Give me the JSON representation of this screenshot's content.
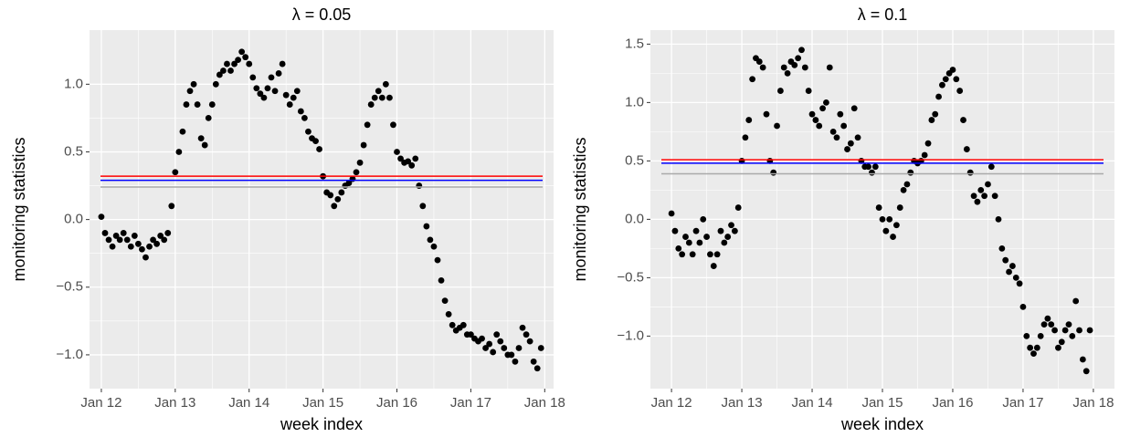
{
  "chart_data": [
    {
      "type": "scatter",
      "title": "λ = 0.05",
      "x_label": "week index",
      "y_label": "monitoring statistics",
      "color": "#000000",
      "x": [
        2012.0,
        2012.05,
        2012.1,
        2012.15,
        2012.2,
        2012.25,
        2012.3,
        2012.35,
        2012.4,
        2012.45,
        2012.5,
        2012.55,
        2012.6,
        2012.65,
        2012.7,
        2012.75,
        2012.8,
        2012.85,
        2012.9,
        2012.95,
        2013.0,
        2013.05,
        2013.1,
        2013.15,
        2013.2,
        2013.25,
        2013.3,
        2013.35,
        2013.4,
        2013.45,
        2013.5,
        2013.55,
        2013.6,
        2013.65,
        2013.7,
        2013.75,
        2013.8,
        2013.85,
        2013.9,
        2013.95,
        2014.0,
        2014.05,
        2014.1,
        2014.15,
        2014.2,
        2014.25,
        2014.3,
        2014.35,
        2014.4,
        2014.45,
        2014.5,
        2014.55,
        2014.6,
        2014.65,
        2014.7,
        2014.75,
        2014.8,
        2014.85,
        2014.9,
        2014.95,
        2015.0,
        2015.05,
        2015.1,
        2015.15,
        2015.2,
        2015.25,
        2015.3,
        2015.35,
        2015.4,
        2015.45,
        2015.5,
        2015.55,
        2015.6,
        2015.65,
        2015.7,
        2015.75,
        2015.8,
        2015.85,
        2015.9,
        2015.95,
        2016.0,
        2016.05,
        2016.1,
        2016.15,
        2016.2,
        2016.25,
        2016.3,
        2016.35,
        2016.4,
        2016.45,
        2016.5,
        2016.55,
        2016.6,
        2016.65,
        2016.7,
        2016.75,
        2016.8,
        2016.85,
        2016.9,
        2016.95,
        2017.0,
        2017.05,
        2017.1,
        2017.15,
        2017.2,
        2017.25,
        2017.3,
        2017.35,
        2017.4,
        2017.45,
        2017.5,
        2017.55,
        2017.6,
        2017.65,
        2017.7,
        2017.75,
        2017.8,
        2017.85,
        2017.9,
        2017.95
      ],
      "values": [
        0.02,
        -0.1,
        -0.15,
        -0.2,
        -0.12,
        -0.15,
        -0.1,
        -0.15,
        -0.2,
        -0.12,
        -0.18,
        -0.22,
        -0.28,
        -0.2,
        -0.15,
        -0.18,
        -0.12,
        -0.15,
        -0.1,
        0.1,
        0.35,
        0.5,
        0.65,
        0.85,
        0.95,
        1.0,
        0.85,
        0.6,
        0.55,
        0.75,
        0.85,
        1.0,
        1.07,
        1.1,
        1.15,
        1.1,
        1.15,
        1.18,
        1.24,
        1.2,
        1.15,
        1.05,
        0.97,
        0.93,
        0.9,
        0.97,
        1.05,
        0.95,
        1.08,
        1.15,
        0.92,
        0.85,
        0.9,
        0.95,
        0.8,
        0.75,
        0.65,
        0.6,
        0.58,
        0.52,
        0.32,
        0.2,
        0.18,
        0.1,
        0.15,
        0.2,
        0.25,
        0.27,
        0.3,
        0.35,
        0.42,
        0.55,
        0.7,
        0.85,
        0.9,
        0.95,
        0.9,
        1.0,
        0.9,
        0.7,
        0.5,
        0.45,
        0.42,
        0.43,
        0.4,
        0.45,
        0.25,
        0.1,
        -0.05,
        -0.15,
        -0.2,
        -0.3,
        -0.45,
        -0.6,
        -0.7,
        -0.78,
        -0.82,
        -0.8,
        -0.78,
        -0.85,
        -0.85,
        -0.88,
        -0.9,
        -0.88,
        -0.95,
        -0.92,
        -0.98,
        -0.85,
        -0.9,
        -0.95,
        -1.0,
        -1.0,
        -1.05,
        -0.95,
        -0.8,
        -0.85,
        -0.9,
        -1.05,
        -1.1,
        -0.95
      ],
      "hlines": [
        {
          "value": 0.32,
          "color": "#ff0000"
        },
        {
          "value": 0.29,
          "color": "#0000ff"
        },
        {
          "value": 0.24,
          "color": "#aaaaaa"
        }
      ],
      "xlim": [
        2011.84,
        2018.12
      ],
      "ylim": [
        -1.25,
        1.4
      ],
      "xticks": [
        {
          "value": 2012,
          "label": "Jan 12"
        },
        {
          "value": 2013,
          "label": "Jan 13"
        },
        {
          "value": 2014,
          "label": "Jan 14"
        },
        {
          "value": 2015,
          "label": "Jan 15"
        },
        {
          "value": 2016,
          "label": "Jan 16"
        },
        {
          "value": 2017,
          "label": "Jan 17"
        },
        {
          "value": 2018,
          "label": "Jan 18"
        }
      ],
      "yticks": [
        {
          "value": -1.0,
          "label": "−1.0"
        },
        {
          "value": -0.5,
          "label": "−0.5"
        },
        {
          "value": 0,
          "label": "0.0"
        },
        {
          "value": 0.5,
          "label": "0.5"
        },
        {
          "value": 1.0,
          "label": "1.0"
        }
      ],
      "grid": true
    },
    {
      "type": "scatter",
      "title": "λ = 0.1",
      "x_label": "week index",
      "y_label": "monitoring statistics",
      "color": "#000000",
      "x": [
        2012.0,
        2012.05,
        2012.1,
        2012.15,
        2012.2,
        2012.25,
        2012.3,
        2012.35,
        2012.4,
        2012.45,
        2012.5,
        2012.55,
        2012.6,
        2012.65,
        2012.7,
        2012.75,
        2012.8,
        2012.85,
        2012.9,
        2012.95,
        2013.0,
        2013.05,
        2013.1,
        2013.15,
        2013.2,
        2013.25,
        2013.3,
        2013.35,
        2013.4,
        2013.45,
        2013.5,
        2013.55,
        2013.6,
        2013.65,
        2013.7,
        2013.75,
        2013.8,
        2013.85,
        2013.9,
        2013.95,
        2014.0,
        2014.05,
        2014.1,
        2014.15,
        2014.2,
        2014.25,
        2014.3,
        2014.35,
        2014.4,
        2014.45,
        2014.5,
        2014.55,
        2014.6,
        2014.65,
        2014.7,
        2014.75,
        2014.8,
        2014.85,
        2014.9,
        2014.95,
        2015.0,
        2015.05,
        2015.1,
        2015.15,
        2015.2,
        2015.25,
        2015.3,
        2015.35,
        2015.4,
        2015.45,
        2015.5,
        2015.55,
        2015.6,
        2015.65,
        2015.7,
        2015.75,
        2015.8,
        2015.85,
        2015.9,
        2015.95,
        2016.0,
        2016.05,
        2016.1,
        2016.15,
        2016.2,
        2016.25,
        2016.3,
        2016.35,
        2016.4,
        2016.45,
        2016.5,
        2016.55,
        2016.6,
        2016.65,
        2016.7,
        2016.75,
        2016.8,
        2016.85,
        2016.9,
        2016.95,
        2017.0,
        2017.05,
        2017.1,
        2017.15,
        2017.2,
        2017.25,
        2017.3,
        2017.35,
        2017.4,
        2017.45,
        2017.5,
        2017.55,
        2017.6,
        2017.65,
        2017.7,
        2017.75,
        2017.8,
        2017.85,
        2017.9,
        2017.95
      ],
      "values": [
        0.05,
        -0.1,
        -0.25,
        -0.3,
        -0.15,
        -0.2,
        -0.3,
        -0.1,
        -0.2,
        0.0,
        -0.15,
        -0.3,
        -0.4,
        -0.3,
        -0.1,
        -0.2,
        -0.15,
        -0.05,
        -0.1,
        0.1,
        0.5,
        0.7,
        0.85,
        1.2,
        1.38,
        1.35,
        1.3,
        0.9,
        0.5,
        0.4,
        0.8,
        1.1,
        1.3,
        1.25,
        1.35,
        1.32,
        1.38,
        1.45,
        1.3,
        1.1,
        0.9,
        0.85,
        0.8,
        0.95,
        1.0,
        1.3,
        0.75,
        0.7,
        0.9,
        0.8,
        0.6,
        0.65,
        0.95,
        0.7,
        0.5,
        0.45,
        0.45,
        0.4,
        0.45,
        0.1,
        0.0,
        -0.1,
        0.0,
        -0.15,
        -0.05,
        0.1,
        0.25,
        0.3,
        0.4,
        0.5,
        0.48,
        0.5,
        0.55,
        0.65,
        0.85,
        0.9,
        1.05,
        1.15,
        1.2,
        1.25,
        1.28,
        1.2,
        1.1,
        0.85,
        0.6,
        0.4,
        0.2,
        0.15,
        0.25,
        0.2,
        0.3,
        0.45,
        0.2,
        0.0,
        -0.25,
        -0.35,
        -0.45,
        -0.4,
        -0.5,
        -0.55,
        -0.75,
        -1.0,
        -1.1,
        -1.15,
        -1.1,
        -1.0,
        -0.9,
        -0.85,
        -0.9,
        -0.95,
        -1.1,
        -1.05,
        -0.95,
        -0.9,
        -1.0,
        -0.7,
        -0.95,
        -1.2,
        -1.3,
        -0.95
      ],
      "hlines": [
        {
          "value": 0.51,
          "color": "#ff0000"
        },
        {
          "value": 0.48,
          "color": "#0000ff"
        },
        {
          "value": 0.39,
          "color": "#aaaaaa"
        }
      ],
      "xlim": [
        2011.7,
        2018.3
      ],
      "ylim": [
        -1.45,
        1.62
      ],
      "xticks": [
        {
          "value": 2012,
          "label": "Jan 12"
        },
        {
          "value": 2013,
          "label": "Jan 13"
        },
        {
          "value": 2014,
          "label": "Jan 14"
        },
        {
          "value": 2015,
          "label": "Jan 15"
        },
        {
          "value": 2016,
          "label": "Jan 16"
        },
        {
          "value": 2017,
          "label": "Jan 17"
        },
        {
          "value": 2018,
          "label": "Jan 18"
        }
      ],
      "yticks": [
        {
          "value": -1.0,
          "label": "−1.0"
        },
        {
          "value": -0.5,
          "label": "−0.5"
        },
        {
          "value": 0,
          "label": "0.0"
        },
        {
          "value": 0.5,
          "label": "0.5"
        },
        {
          "value": 1.0,
          "label": "1.0"
        },
        {
          "value": 1.5,
          "label": "1.5"
        }
      ],
      "grid": true
    }
  ]
}
